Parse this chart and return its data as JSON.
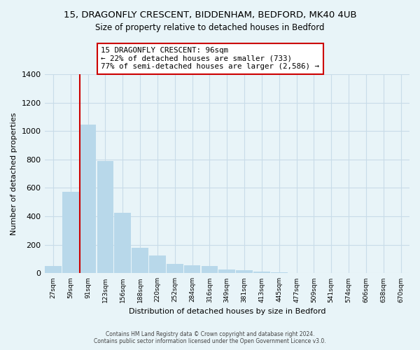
{
  "title": "15, DRAGONFLY CRESCENT, BIDDENHAM, BEDFORD, MK40 4UB",
  "subtitle": "Size of property relative to detached houses in Bedford",
  "xlabel": "Distribution of detached houses by size in Bedford",
  "ylabel": "Number of detached properties",
  "bin_labels": [
    "27sqm",
    "59sqm",
    "91sqm",
    "123sqm",
    "156sqm",
    "188sqm",
    "220sqm",
    "252sqm",
    "284sqm",
    "316sqm",
    "349sqm",
    "381sqm",
    "413sqm",
    "445sqm",
    "477sqm",
    "509sqm",
    "541sqm",
    "574sqm",
    "606sqm",
    "638sqm",
    "670sqm"
  ],
  "bar_heights": [
    50,
    575,
    1045,
    790,
    425,
    180,
    125,
    65,
    55,
    50,
    25,
    20,
    10,
    5,
    0,
    0,
    0,
    0,
    0,
    0,
    0
  ],
  "bar_color": "#b8d8ea",
  "vline_color": "#cc0000",
  "annotation_title": "15 DRAGONFLY CRESCENT: 96sqm",
  "annotation_line1": "← 22% of detached houses are smaller (733)",
  "annotation_line2": "77% of semi-detached houses are larger (2,586) →",
  "annotation_box_color": "#ffffff",
  "annotation_box_edge": "#cc0000",
  "ylim": [
    0,
    1400
  ],
  "yticks": [
    0,
    200,
    400,
    600,
    800,
    1000,
    1200,
    1400
  ],
  "footer1": "Contains HM Land Registry data © Crown copyright and database right 2024.",
  "footer2": "Contains public sector information licensed under the Open Government Licence v3.0.",
  "background_color": "#e8f4f8",
  "grid_color": "#c8dce8"
}
